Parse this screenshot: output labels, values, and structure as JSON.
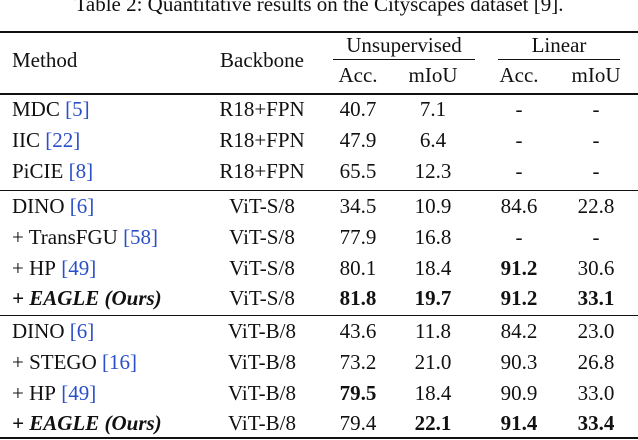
{
  "caption": "Table 2: Quantitative results on the Cityscapes dataset [9].",
  "header": {
    "method": "Method",
    "backbone": "Backbone",
    "groups": [
      "Unsupervised",
      "Linear"
    ],
    "metrics": [
      "Acc.",
      "mIoU",
      "Acc.",
      "mIoU"
    ]
  },
  "sections": [
    [
      {
        "method": "MDC",
        "cite": "[5]",
        "backbone": "R18+FPN",
        "cells": [
          "40.7",
          "7.1",
          "-",
          "-"
        ],
        "bold": [
          false,
          false,
          false,
          false
        ],
        "emph": false
      },
      {
        "method": "IIC",
        "cite": "[22]",
        "backbone": "R18+FPN",
        "cells": [
          "47.9",
          "6.4",
          "-",
          "-"
        ],
        "bold": [
          false,
          false,
          false,
          false
        ],
        "emph": false
      },
      {
        "method": "PiCIE",
        "cite": "[8]",
        "backbone": "R18+FPN",
        "cells": [
          "65.5",
          "12.3",
          "-",
          "-"
        ],
        "bold": [
          false,
          false,
          false,
          false
        ],
        "emph": false
      }
    ],
    [
      {
        "method": "DINO",
        "cite": "[6]",
        "backbone": "ViT-S/8",
        "cells": [
          "34.5",
          "10.9",
          "84.6",
          "22.8"
        ],
        "bold": [
          false,
          false,
          false,
          false
        ],
        "emph": false
      },
      {
        "method": "+ TransFGU",
        "cite": "[58]",
        "backbone": "ViT-S/8",
        "cells": [
          "77.9",
          "16.8",
          "-",
          "-"
        ],
        "bold": [
          false,
          false,
          false,
          false
        ],
        "emph": false
      },
      {
        "method": "+ HP",
        "cite": "[49]",
        "backbone": "ViT-S/8",
        "cells": [
          "80.1",
          "18.4",
          "91.2",
          "30.6"
        ],
        "bold": [
          false,
          false,
          true,
          false
        ],
        "emph": false
      },
      {
        "method": "+ EAGLE (Ours)",
        "cite": null,
        "backbone": "ViT-S/8",
        "cells": [
          "81.8",
          "19.7",
          "91.2",
          "33.1"
        ],
        "bold": [
          true,
          true,
          true,
          true
        ],
        "emph": true
      }
    ],
    [
      {
        "method": "DINO",
        "cite": "[6]",
        "backbone": "ViT-B/8",
        "cells": [
          "43.6",
          "11.8",
          "84.2",
          "23.0"
        ],
        "bold": [
          false,
          false,
          false,
          false
        ],
        "emph": false
      },
      {
        "method": "+ STEGO",
        "cite": "[16]",
        "backbone": "ViT-B/8",
        "cells": [
          "73.2",
          "21.0",
          "90.3",
          "26.8"
        ],
        "bold": [
          false,
          false,
          false,
          false
        ],
        "emph": false
      },
      {
        "method": "+ HP",
        "cite": "[49]",
        "backbone": "ViT-B/8",
        "cells": [
          "79.5",
          "18.4",
          "90.9",
          "33.0"
        ],
        "bold": [
          true,
          false,
          false,
          false
        ],
        "emph": false
      },
      {
        "method": "+ EAGLE (Ours)",
        "cite": null,
        "backbone": "ViT-B/8",
        "cells": [
          "79.4",
          "22.1",
          "91.4",
          "33.4"
        ],
        "bold": [
          false,
          true,
          true,
          true
        ],
        "emph": true
      }
    ]
  ]
}
